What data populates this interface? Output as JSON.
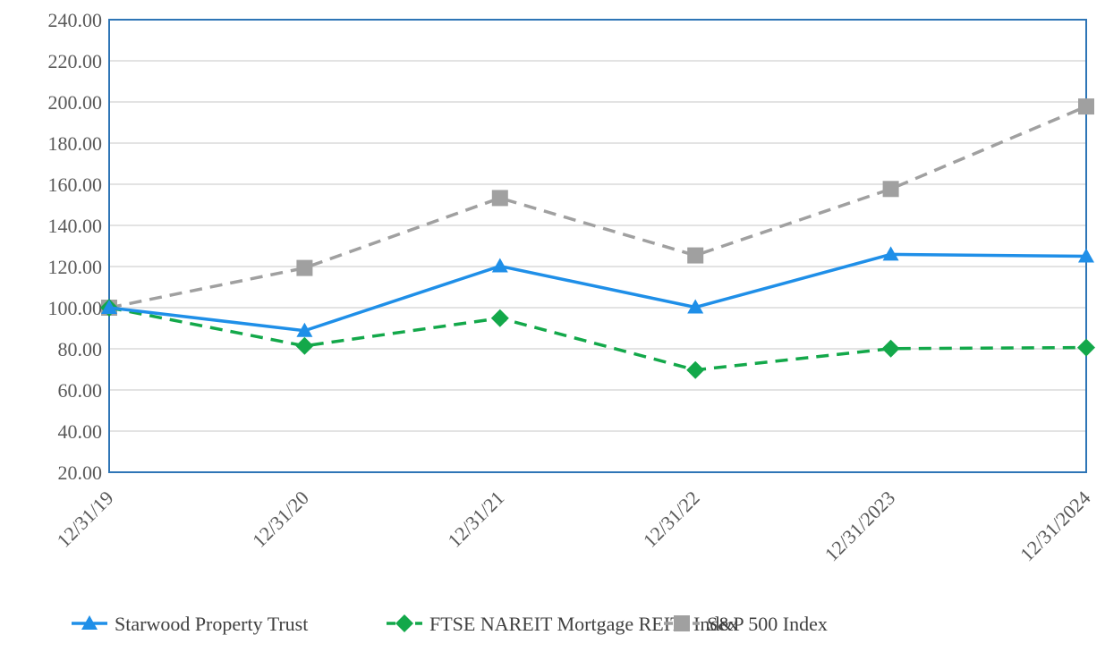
{
  "chart_data": {
    "type": "line",
    "title": "",
    "xlabel": "",
    "ylabel": "",
    "categories": [
      "12/31/19",
      "12/31/20",
      "12/31/21",
      "12/31/22",
      "12/31/2023",
      "12/31/2024"
    ],
    "ylim": [
      20,
      240
    ],
    "yticks": [
      "20.00",
      "40.00",
      "60.00",
      "80.00",
      "100.00",
      "120.00",
      "140.00",
      "160.00",
      "180.00",
      "200.00",
      "220.00",
      "240.00"
    ],
    "grid": true,
    "legend_position": "bottom",
    "series": [
      {
        "name": "Starwood Property Trust",
        "values": [
          100.0,
          88.8,
          120.2,
          100.2,
          125.9,
          125.0
        ],
        "color": "#1f8fe8",
        "marker": "triangle",
        "dash": false
      },
      {
        "name": "FTSE NAREIT Mortgage REITs Index",
        "values": [
          100.0,
          81.4,
          94.9,
          69.7,
          80.1,
          80.6
        ],
        "color": "#13a84a",
        "marker": "diamond",
        "dash": true
      },
      {
        "name": "S&P 500 Index",
        "values": [
          100.0,
          119.3,
          153.3,
          125.4,
          157.7,
          197.8
        ],
        "color": "#a0a0a0",
        "marker": "square",
        "dash": true
      }
    ]
  }
}
